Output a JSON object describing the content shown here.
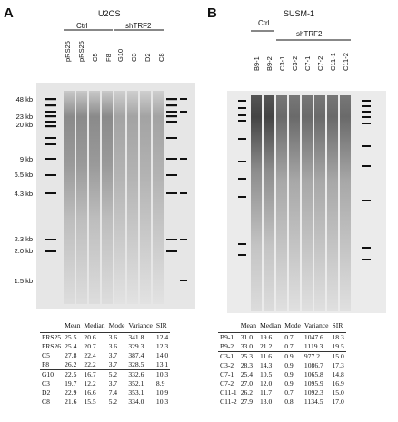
{
  "panelA": {
    "letter": "A",
    "cell_line": "U2OS",
    "groups": [
      "Ctrl",
      "shTRF2"
    ],
    "lanes": [
      "pRS25",
      "pRS26",
      "C5",
      "F8",
      "G10",
      "C3",
      "D2",
      "C8"
    ],
    "size_markers": [
      "48 kb",
      "23 kb",
      "20 kb",
      "9 kb",
      "6.5 kb",
      "4.3 kb",
      "2.3 kb",
      "2.0 kb",
      "1.5 kb"
    ],
    "table": {
      "columns": [
        "",
        "Mean",
        "Median",
        "Mode",
        "Variance",
        "SIR"
      ],
      "rows": [
        [
          "PRS25",
          "25.5",
          "20.6",
          "3.6",
          "341.8",
          "12.4"
        ],
        [
          "PRS26",
          "25.4",
          "20.7",
          "3.6",
          "329.3",
          "12.3"
        ],
        [
          "C5",
          "27.8",
          "22.4",
          "3.7",
          "387.4",
          "14.0"
        ],
        [
          "F8",
          "26.2",
          "22.2",
          "3.7",
          "328.5",
          "13.1"
        ],
        [
          "G10",
          "22.5",
          "16.7",
          "5.2",
          "332.6",
          "10.3"
        ],
        [
          "C3",
          "19.7",
          "12.2",
          "3.7",
          "352.1",
          "8.9"
        ],
        [
          "D2",
          "22.9",
          "16.6",
          "7.4",
          "353.1",
          "10.9"
        ],
        [
          "C8",
          "21.6",
          "15.5",
          "5.2",
          "334.0",
          "10.3"
        ]
      ]
    }
  },
  "panelB": {
    "letter": "B",
    "cell_line": "SUSM-1",
    "groups": [
      "Ctrl",
      "shTRF2"
    ],
    "lanes": [
      "B9-1",
      "B9-2",
      "C3-1",
      "C3-2",
      "C7-1",
      "C7-2",
      "C11-1",
      "C11-2"
    ],
    "table": {
      "columns": [
        "",
        "Mean",
        "Median",
        "Mode",
        "Variance",
        "SIR"
      ],
      "rows": [
        [
          "B9-1",
          "31.0",
          "19.6",
          "0.7",
          "1047.6",
          "18.3"
        ],
        [
          "B9-2",
          "33.0",
          "21.2",
          "0.7",
          "1119.3",
          "19.5"
        ],
        [
          "C3-1",
          "25.3",
          "11.6",
          "0.9",
          "977.2",
          "15.0"
        ],
        [
          "C3-2",
          "28.3",
          "14.3",
          "0.9",
          "1086.7",
          "17.3"
        ],
        [
          "C7-1",
          "25.4",
          "10.5",
          "0.9",
          "1065.8",
          "14.8"
        ],
        [
          "C7-2",
          "27.0",
          "12.0",
          "0.9",
          "1095.9",
          "16.9"
        ],
        [
          "C11-1",
          "26.2",
          "11.7",
          "0.7",
          "1092.3",
          "15.0"
        ],
        [
          "C11-2",
          "27.9",
          "13.0",
          "0.8",
          "1134.5",
          "17.0"
        ]
      ]
    }
  }
}
